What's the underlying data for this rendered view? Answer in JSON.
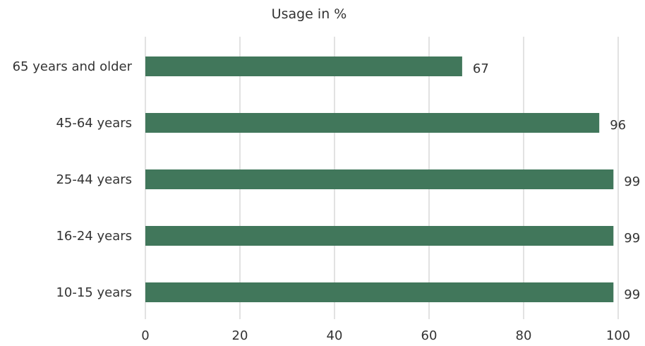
{
  "chart_data": {
    "type": "bar",
    "orientation": "horizontal",
    "title": "",
    "xlabel": "Usage in %",
    "ylabel": "",
    "categories": [
      "65 years and older",
      "45-64 years",
      "25-44 years",
      "16-24 years",
      "10-15 years"
    ],
    "values": [
      67,
      96,
      99,
      99,
      99
    ],
    "xlim": [
      0,
      100
    ],
    "xticks": [
      0,
      20,
      40,
      60,
      80,
      100
    ],
    "xtick_labels": [
      "0",
      "20",
      "40",
      "60",
      "80",
      "100"
    ],
    "grid": true,
    "legend": "none",
    "bar_color": "#41775b"
  }
}
